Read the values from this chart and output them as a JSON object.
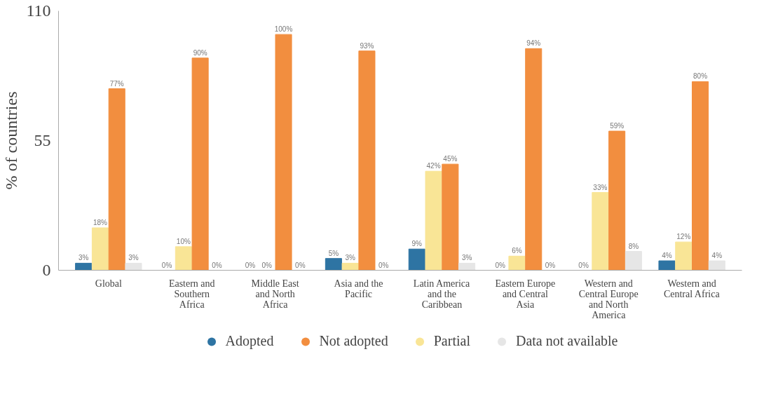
{
  "chart_data": {
    "type": "bar",
    "ylabel": "% of countries",
    "categories": [
      "Global",
      "Eastern and Southern Africa",
      "Middle East and North Africa",
      "Asia and the Pacific",
      "Latin America and the Caribbean",
      "Eastern Europe and Central Asia",
      "Western and Central Europe and North America",
      "Western and Central Africa"
    ],
    "series": [
      {
        "name": "Adopted",
        "color": "#2e74a3",
        "values": [
          3,
          0,
          0,
          5,
          9,
          0,
          0,
          4
        ],
        "value_labels": [
          "3%",
          "0%",
          "0%",
          "5%",
          "9%",
          "0%",
          "0%",
          "4%"
        ]
      },
      {
        "name": "Partial",
        "color": "#f9e596",
        "values": [
          18,
          10,
          0,
          3,
          42,
          6,
          33,
          12
        ],
        "value_labels": [
          "18%",
          "10%",
          "0%",
          "3%",
          "42%",
          "6%",
          "33%",
          "12%"
        ]
      },
      {
        "name": "Not adopted",
        "color": "#f28e3f",
        "values": [
          77,
          90,
          100,
          93,
          45,
          94,
          59,
          80
        ],
        "value_labels": [
          "77%",
          "90%",
          "100%",
          "93%",
          "45%",
          "94%",
          "59%",
          "80%"
        ]
      },
      {
        "name": "Data not available",
        "color": "#e6e6e6",
        "values": [
          3,
          0,
          0,
          0,
          3,
          0,
          8,
          4
        ],
        "value_labels": [
          "3%",
          "0%",
          "0%",
          "0%",
          "3%",
          "0%",
          "8%",
          "4%"
        ]
      }
    ],
    "ylim": [
      0,
      110
    ],
    "yticks": [
      0,
      55,
      110
    ],
    "grid": false,
    "legend": "bottom"
  }
}
